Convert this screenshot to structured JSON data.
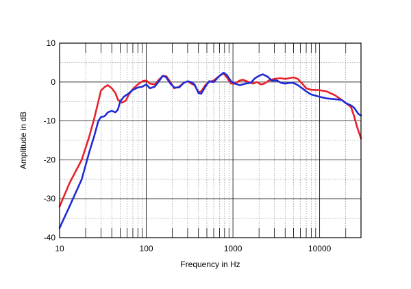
{
  "chart_data": {
    "type": "line",
    "title": "",
    "xlabel": "Frequency in Hz",
    "ylabel": "Amplitude in dB",
    "x_scale": "log",
    "xlim": [
      10,
      30000
    ],
    "ylim": [
      -40,
      10
    ],
    "grid": true,
    "x_tick_labels": [
      "10",
      "100",
      "1000",
      "10000"
    ],
    "x_ticks": [
      10,
      100,
      1000,
      10000
    ],
    "y_ticks": [
      10,
      0,
      -10,
      -20,
      -30,
      -40
    ],
    "y_tick_labels": [
      "10",
      "0",
      "-10",
      "-20",
      "-30",
      "-40"
    ],
    "colors": {
      "red": "#e8212a",
      "blue": "#1f2bd6",
      "grid": "#777777",
      "frame": "#000000"
    },
    "series": [
      {
        "color": "#e8212a",
        "points": [
          [
            10,
            -32
          ],
          [
            13,
            -26
          ],
          [
            18,
            -20
          ],
          [
            22,
            -14
          ],
          [
            25,
            -9.5
          ],
          [
            28,
            -5
          ],
          [
            30,
            -2.2
          ],
          [
            33,
            -1.3
          ],
          [
            36,
            -0.8
          ],
          [
            40,
            -1.6
          ],
          [
            44,
            -2.8
          ],
          [
            47,
            -4.5
          ],
          [
            52,
            -5.3
          ],
          [
            58,
            -4.8
          ],
          [
            63,
            -3.2
          ],
          [
            70,
            -1.8
          ],
          [
            80,
            -0.6
          ],
          [
            90,
            0.2
          ],
          [
            100,
            0.4
          ],
          [
            110,
            -0.4
          ],
          [
            125,
            -0.6
          ],
          [
            140,
            0.6
          ],
          [
            155,
            1.6
          ],
          [
            170,
            1.5
          ],
          [
            190,
            0
          ],
          [
            210,
            -1.6
          ],
          [
            240,
            -1.2
          ],
          [
            270,
            -0.2
          ],
          [
            300,
            0.2
          ],
          [
            330,
            -0.4
          ],
          [
            360,
            -0.8
          ],
          [
            400,
            -2.6
          ],
          [
            430,
            -2.4
          ],
          [
            480,
            -0.8
          ],
          [
            530,
            0
          ],
          [
            600,
            0.4
          ],
          [
            700,
            1.6
          ],
          [
            780,
            2.2
          ],
          [
            850,
            1.2
          ],
          [
            950,
            -0.4
          ],
          [
            1050,
            -0.4
          ],
          [
            1200,
            0.4
          ],
          [
            1300,
            0.6
          ],
          [
            1450,
            0.2
          ],
          [
            1700,
            -0.4
          ],
          [
            1900,
            0
          ],
          [
            2100,
            -0.6
          ],
          [
            2300,
            -0.4
          ],
          [
            2600,
            0.4
          ],
          [
            3000,
            0.8
          ],
          [
            3500,
            1
          ],
          [
            4000,
            0.8
          ],
          [
            4500,
            1
          ],
          [
            5000,
            1.2
          ],
          [
            5600,
            0.8
          ],
          [
            6300,
            -0.4
          ],
          [
            7000,
            -1.6
          ],
          [
            8000,
            -2
          ],
          [
            10000,
            -2.1
          ],
          [
            12000,
            -2.4
          ],
          [
            15000,
            -3.4
          ],
          [
            18000,
            -4.6
          ],
          [
            20000,
            -5.4
          ],
          [
            23000,
            -6.4
          ],
          [
            25000,
            -8.8
          ],
          [
            27000,
            -11.5
          ],
          [
            30000,
            -14.5
          ]
        ]
      },
      {
        "color": "#1f2bd6",
        "points": [
          [
            10,
            -37.5
          ],
          [
            13,
            -32
          ],
          [
            18,
            -25
          ],
          [
            22,
            -18
          ],
          [
            25,
            -14
          ],
          [
            28,
            -10
          ],
          [
            30,
            -9
          ],
          [
            33,
            -8.8
          ],
          [
            36,
            -7.8
          ],
          [
            40,
            -7.4
          ],
          [
            44,
            -7.8
          ],
          [
            47,
            -7.1
          ],
          [
            50,
            -5
          ],
          [
            55,
            -3.8
          ],
          [
            62,
            -3
          ],
          [
            70,
            -2
          ],
          [
            80,
            -1.4
          ],
          [
            90,
            -1.2
          ],
          [
            100,
            -0.6
          ],
          [
            110,
            -1.6
          ],
          [
            125,
            -1.2
          ],
          [
            140,
            0.2
          ],
          [
            155,
            1.6
          ],
          [
            170,
            1.2
          ],
          [
            190,
            -0.4
          ],
          [
            210,
            -1.4
          ],
          [
            240,
            -1.4
          ],
          [
            270,
            -0.2
          ],
          [
            300,
            0.2
          ],
          [
            330,
            0
          ],
          [
            360,
            -0.6
          ],
          [
            400,
            -2.8
          ],
          [
            430,
            -3
          ],
          [
            480,
            -1.2
          ],
          [
            530,
            0.2
          ],
          [
            600,
            0
          ],
          [
            700,
            1.6
          ],
          [
            780,
            2.4
          ],
          [
            850,
            1.8
          ],
          [
            950,
            0.2
          ],
          [
            1050,
            -0.4
          ],
          [
            1200,
            -0.8
          ],
          [
            1400,
            -0.4
          ],
          [
            1600,
            -0.2
          ],
          [
            1800,
            1
          ],
          [
            2000,
            1.6
          ],
          [
            2200,
            2
          ],
          [
            2500,
            1.4
          ],
          [
            2800,
            0.4
          ],
          [
            3200,
            0.4
          ],
          [
            3600,
            -0.2
          ],
          [
            4000,
            -0.4
          ],
          [
            4500,
            -0.2
          ],
          [
            5000,
            -0.2
          ],
          [
            5600,
            -0.8
          ],
          [
            6300,
            -1.6
          ],
          [
            7000,
            -2.4
          ],
          [
            8000,
            -3.2
          ],
          [
            10000,
            -3.8
          ],
          [
            12000,
            -4.2
          ],
          [
            15000,
            -4.4
          ],
          [
            18000,
            -4.6
          ],
          [
            20000,
            -5.4
          ],
          [
            23000,
            -6
          ],
          [
            25000,
            -6.6
          ],
          [
            28000,
            -8.2
          ],
          [
            30000,
            -8.6
          ]
        ]
      }
    ]
  }
}
